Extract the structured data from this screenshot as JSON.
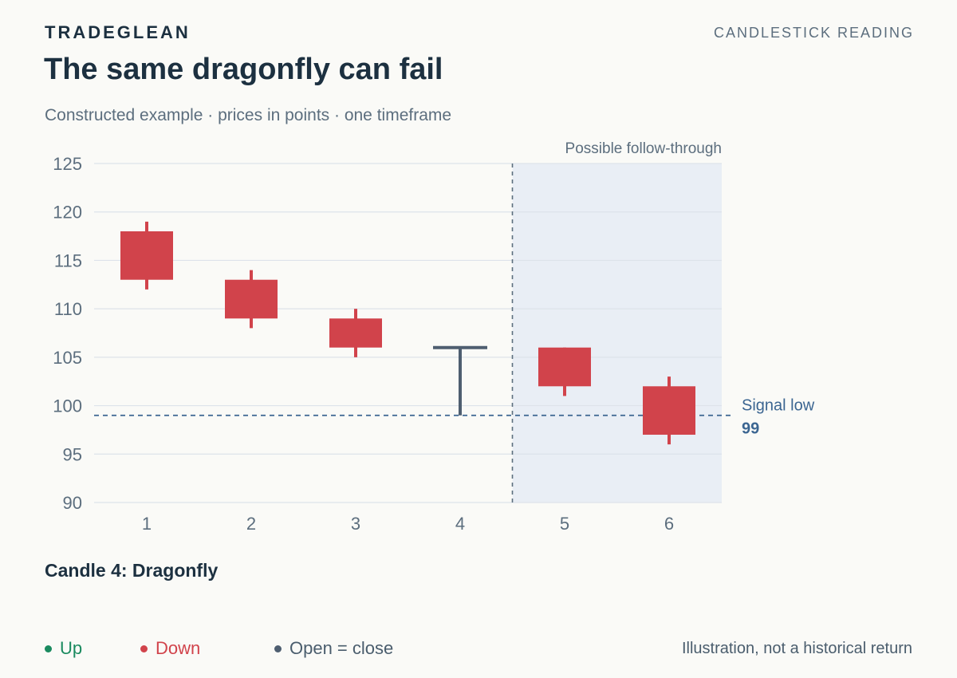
{
  "header": {
    "brand": "TRADEGLEAN",
    "section": "CANDLESTICK READING",
    "title": "The same dragonfly can fail",
    "subtitle": "Constructed example · prices in points · one timeframe"
  },
  "caption": "Candle 4: Dragonfly",
  "legend": [
    {
      "label": "Up",
      "color": "#1a8a5f",
      "cls": "up"
    },
    {
      "label": "Down",
      "color": "#d1434b",
      "cls": "down"
    },
    {
      "label": "Open = close",
      "color": "#4e5e70",
      "cls": "doji"
    }
  ],
  "footnote": "Illustration, not a historical return",
  "colors": {
    "up": "#1a8a5f",
    "down": "#d1434b",
    "doji": "#4e5e70",
    "grid": "#dde3ea",
    "axis_text": "#5c6e7e",
    "shade": "#e9eef5",
    "signal": "#3b6591"
  },
  "chart_data": {
    "type": "candlestick",
    "x_categories": [
      "1",
      "2",
      "3",
      "4",
      "5",
      "6"
    ],
    "ylim": [
      90,
      125
    ],
    "yticks": [
      90,
      95,
      100,
      105,
      110,
      115,
      120,
      125
    ],
    "grid": true,
    "candles": [
      {
        "x": "1",
        "open": 118,
        "high": 119,
        "low": 112,
        "close": 113
      },
      {
        "x": "2",
        "open": 113,
        "high": 114,
        "low": 108,
        "close": 109
      },
      {
        "x": "3",
        "open": 109,
        "high": 110,
        "low": 105,
        "close": 106
      },
      {
        "x": "4",
        "open": 106,
        "high": 106,
        "low": 99,
        "close": 106
      },
      {
        "x": "5",
        "open": 106,
        "high": 106,
        "low": 101,
        "close": 102
      },
      {
        "x": "6",
        "open": 102,
        "high": 103,
        "low": 96,
        "close": 97
      }
    ],
    "shaded_region": {
      "from_x": 4.5,
      "to_x": 6.5,
      "label": "Possible follow-through"
    },
    "signal_line": {
      "y": 99,
      "label": "Signal low",
      "value_label": "99"
    }
  }
}
